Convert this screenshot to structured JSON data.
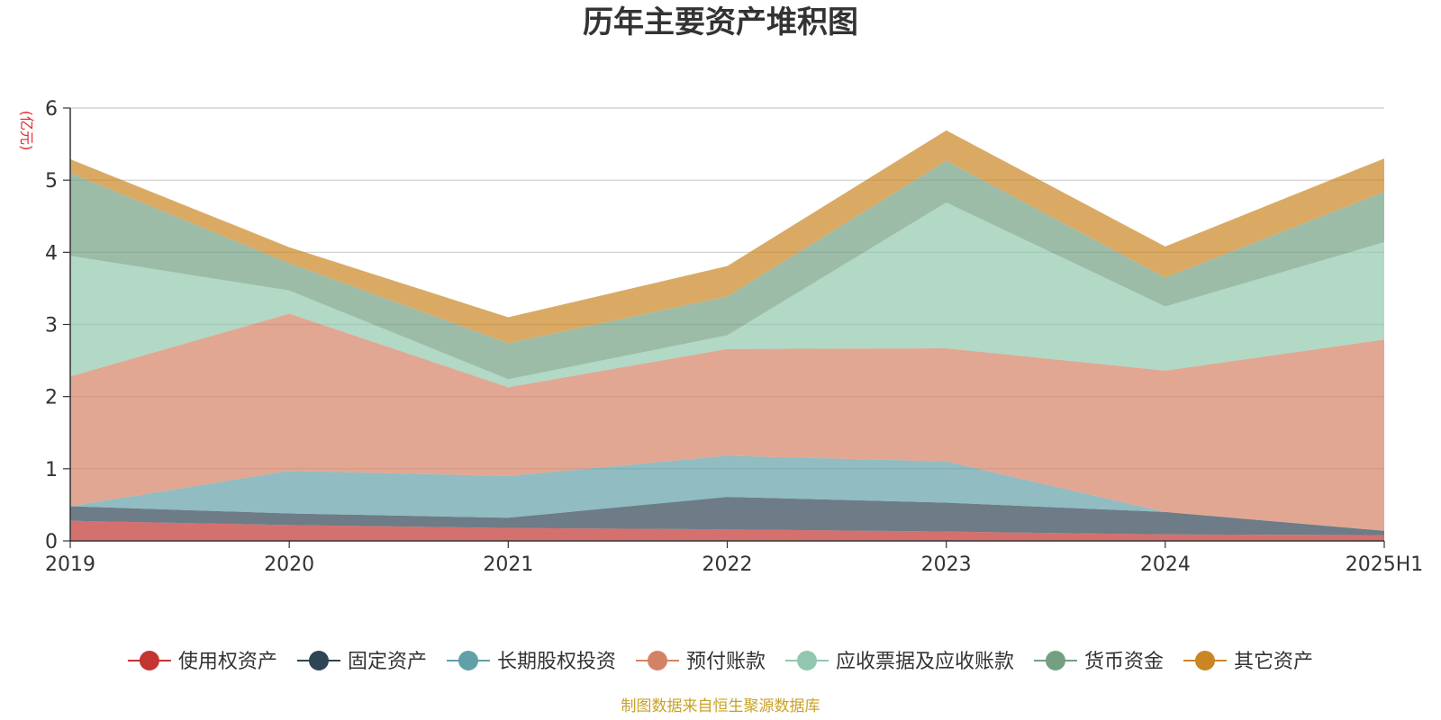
{
  "chart_data": {
    "type": "area",
    "stacked": true,
    "title": "历年主要资产堆积图",
    "ylabel": "(亿元)",
    "ylim": [
      0,
      6
    ],
    "yticks": [
      0,
      1,
      2,
      3,
      4,
      5,
      6
    ],
    "categories": [
      "2019",
      "2020",
      "2021",
      "2022",
      "2023",
      "2024",
      "2025H1"
    ],
    "grid": true,
    "legend_position": "bottom",
    "source": "制图数据来自恒生聚源数据库",
    "series": [
      {
        "name": "使用权资产",
        "color": "#c23531",
        "values": [
          0.28,
          0.22,
          0.18,
          0.16,
          0.13,
          0.09,
          0.08
        ]
      },
      {
        "name": "固定资产",
        "color": "#2f4554",
        "values": [
          0.2,
          0.16,
          0.14,
          0.45,
          0.4,
          0.31,
          0.06
        ]
      },
      {
        "name": "长期股权投资",
        "color": "#61a0a8",
        "values": [
          0.0,
          0.59,
          0.58,
          0.57,
          0.57,
          0.0,
          0.0
        ]
      },
      {
        "name": "预付账款",
        "color": "#d48265",
        "values": [
          1.8,
          2.18,
          1.23,
          1.48,
          1.57,
          1.96,
          2.65
        ]
      },
      {
        "name": "应收票据及应收账款",
        "color": "#91c7ae",
        "values": [
          1.67,
          0.32,
          0.11,
          0.19,
          2.02,
          0.89,
          1.35
        ]
      },
      {
        "name": "货币资金",
        "color": "#749f83",
        "values": [
          1.15,
          0.38,
          0.5,
          0.54,
          0.58,
          0.4,
          0.7
        ]
      },
      {
        "name": "其它资产",
        "color": "#ca8622",
        "values": [
          0.19,
          0.22,
          0.36,
          0.42,
          0.42,
          0.43,
          0.46
        ]
      }
    ]
  }
}
